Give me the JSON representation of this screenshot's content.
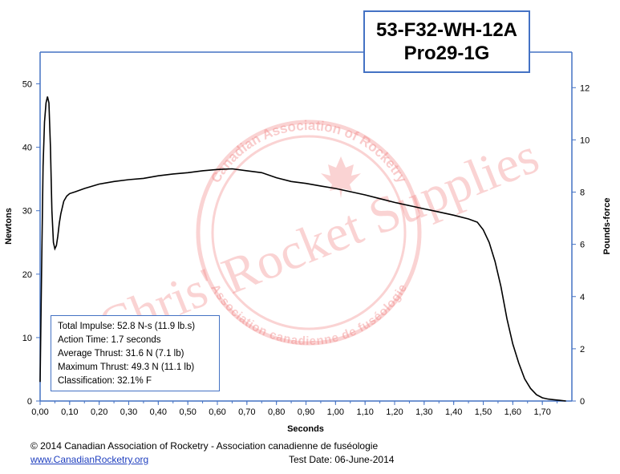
{
  "title": {
    "line1": "53-F32-WH-12A",
    "line2": "Pro29-1G"
  },
  "stats": {
    "total_impulse": "Total Impulse: 52.8 N-s (11.9 lb.s)",
    "action_time": "Action Time: 1.7 seconds",
    "average_thrust": "Average Thrust: 31.6 N (7.1 lb)",
    "maximum_thrust": "Maximum Thrust: 49.3 N (11.1 lb)",
    "classification": "Classification: 32.1% F"
  },
  "footer": {
    "copyright": "© 2014 Canadian Association of Rocketry - Association canadienne de fuséologie",
    "link": "www.CanadianRocketry.org",
    "test_date": "Test  Date: 06-June-2014"
  },
  "watermark": {
    "main": "Chris' Rocket Supplies",
    "ring_top": "Canadian Association of Rocketry",
    "ring_bottom": "Association canadienne de fuséologie",
    "color": "#f08080"
  },
  "colors": {
    "axis": "#4472c4",
    "curve": "#000000"
  },
  "chart_data": {
    "type": "line",
    "xlabel": "Seconds",
    "ylabel": "Newtons",
    "y2label": "Pounds-force",
    "xlim": [
      0,
      1.8
    ],
    "ylim": [
      0,
      55
    ],
    "y2lim": [
      0,
      13.36
    ],
    "grid": false,
    "x_ticks": [
      "0,00",
      "0,10",
      "0,20",
      "0,30",
      "0,40",
      "0,50",
      "0,60",
      "0,70",
      "0,80",
      "0,90",
      "1,00",
      "1,10",
      "1,20",
      "1,30",
      "1,40",
      "1,50",
      "1,60",
      "1,70"
    ],
    "y_ticks": [
      "0",
      "10",
      "20",
      "30",
      "40",
      "50"
    ],
    "y2_ticks": [
      "0",
      "2",
      "4",
      "6",
      "8",
      "10",
      "12"
    ],
    "series": [
      {
        "x": [
          0.0,
          0.005,
          0.01,
          0.015,
          0.02,
          0.025,
          0.03,
          0.035,
          0.04,
          0.045,
          0.05,
          0.055,
          0.06,
          0.065,
          0.07,
          0.08,
          0.09,
          0.1,
          0.12,
          0.15,
          0.2,
          0.25,
          0.3,
          0.35,
          0.4,
          0.45,
          0.5,
          0.55,
          0.6,
          0.65,
          0.7,
          0.75,
          0.8,
          0.85,
          0.9,
          0.95,
          1.0,
          1.05,
          1.1,
          1.15,
          1.2,
          1.25,
          1.3,
          1.35,
          1.4,
          1.45,
          1.48,
          1.5,
          1.52,
          1.54,
          1.56,
          1.58,
          1.6,
          1.62,
          1.64,
          1.66,
          1.68,
          1.7,
          1.72,
          1.74,
          1.76,
          1.78
        ],
        "y": [
          3,
          20,
          37,
          44,
          47,
          48,
          47,
          40,
          30,
          25,
          24,
          24.5,
          26,
          28,
          29.5,
          31.5,
          32.3,
          32.7,
          33,
          33.5,
          34.2,
          34.6,
          34.9,
          35.1,
          35.5,
          35.8,
          36,
          36.3,
          36.5,
          36.6,
          36.3,
          36,
          35.2,
          34.6,
          34.3,
          33.9,
          33.5,
          33,
          32.5,
          31.9,
          31.3,
          30.8,
          30.3,
          29.8,
          29.3,
          28.7,
          28.2,
          27,
          25,
          22,
          18,
          13,
          9,
          6,
          3.5,
          2,
          1,
          0.5,
          0.3,
          0.2,
          0.1,
          0
        ]
      }
    ]
  }
}
